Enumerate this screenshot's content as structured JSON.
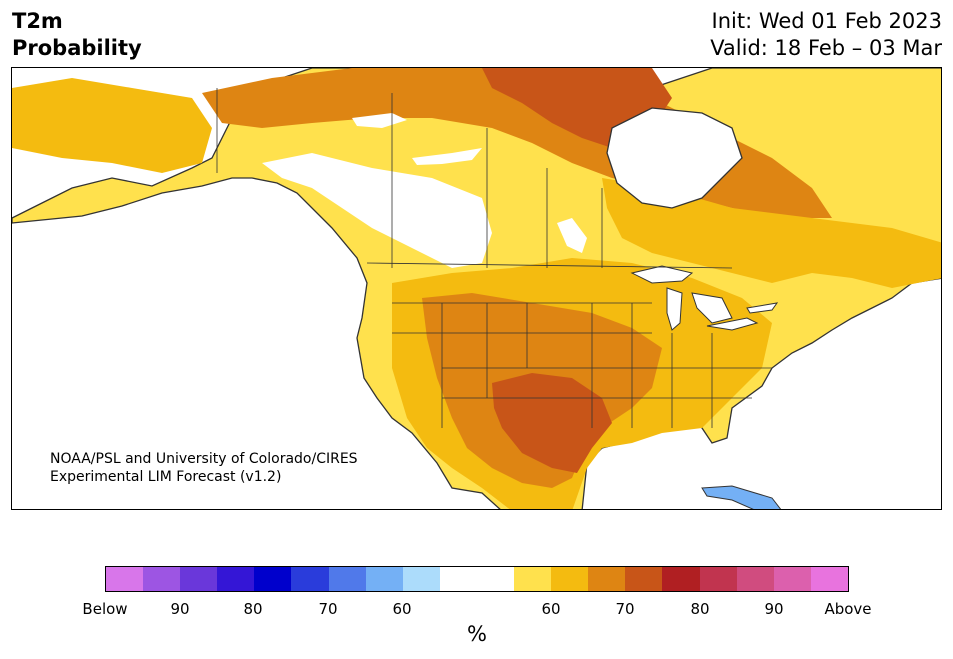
{
  "header": {
    "variable": "T2m",
    "product": "Probability",
    "init": "Init: Wed 01 Feb 2023",
    "valid": "Valid: 18 Feb – 03 Mar"
  },
  "map": {
    "credit_line1": "NOAA/PSL and University of Colorado/CIRES",
    "credit_line2": "Experimental LIM Forecast (v1.2)",
    "land_outline_color": "#333333",
    "no_signal_color": "#ffffff"
  },
  "colorbar": {
    "segments": [
      "#d876ea",
      "#9d55e3",
      "#6a37da",
      "#3416d6",
      "#0000cc",
      "#2a3cdb",
      "#5079ea",
      "#74b0f5",
      "#acdcfb",
      "#ffffff",
      "#ffffff",
      "#ffe14d",
      "#f4bb10",
      "#de8513",
      "#c85518",
      "#b01f22",
      "#c1344f",
      "#d04c7f",
      "#dc60ad",
      "#e873de"
    ],
    "ticks": [
      "Below",
      "90",
      "80",
      "70",
      "60",
      "60",
      "70",
      "80",
      "90",
      "Above"
    ],
    "unit": "%"
  }
}
